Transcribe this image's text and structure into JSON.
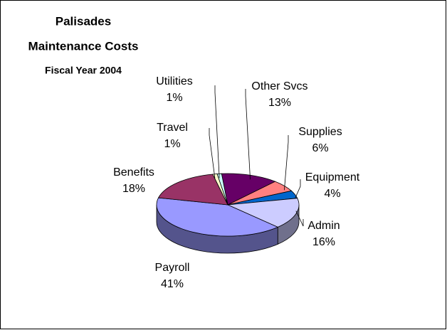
{
  "chart_data": {
    "type": "pie3d",
    "title": [
      "Palisades",
      "Maintenance Costs"
    ],
    "subtitle": "Fiscal Year 2004",
    "categories": [
      "Other Svcs",
      "Supplies",
      "Equipment",
      "Admin",
      "Payroll",
      "Benefits",
      "Travel",
      "Utilities"
    ],
    "values": [
      13,
      6,
      4,
      16,
      41,
      18,
      1,
      1
    ],
    "value_labels": [
      "13%",
      "6%",
      "4%",
      "16%",
      "41%",
      "18%",
      "1%",
      "1%"
    ],
    "colors": [
      "#660066",
      "#ff8080",
      "#0066cc",
      "#ccccff",
      "#9999ff",
      "#993366",
      "#ffffcc",
      "#ccffff"
    ]
  }
}
